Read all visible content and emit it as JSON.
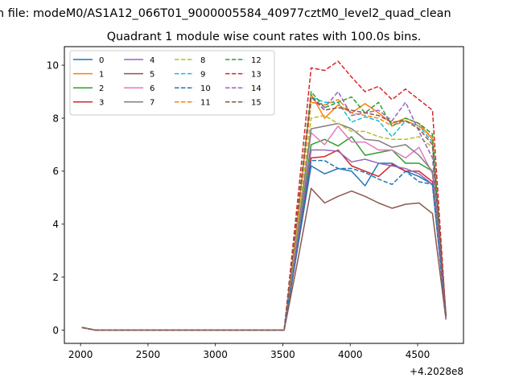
{
  "figure": {
    "suptitle": "n file: modeM0/AS1A12_066T01_9000005584_40977cztM0_level2_quad_clean",
    "title": "Quadrant 1 module wise count rates with 100.0s bins."
  },
  "chart_data": {
    "type": "line",
    "title": "Quadrant 1 module wise count rates with 100.0s bins.",
    "xlabel": "",
    "ylabel": "",
    "x_offset_label": "+4.2028e8",
    "xlim": [
      1880,
      4840
    ],
    "ylim": [
      -0.5,
      10.7
    ],
    "xticks": [
      2000,
      2500,
      3000,
      3500,
      4000,
      4500
    ],
    "yticks": [
      0,
      2,
      4,
      6,
      8,
      10
    ],
    "grid": false,
    "legend_position": "upper-left",
    "legend_columns": 4,
    "x": [
      2010,
      2110,
      2210,
      2310,
      2410,
      2510,
      2610,
      2710,
      2810,
      2910,
      3010,
      3110,
      3210,
      3310,
      3410,
      3510,
      3610,
      3710,
      3810,
      3910,
      4010,
      4110,
      4210,
      4310,
      4410,
      4510,
      4610,
      4710
    ],
    "series": [
      {
        "name": "0",
        "color": "#1f77b4",
        "dash": false,
        "values": [
          0.1,
          0,
          0,
          0,
          0,
          0,
          0,
          0,
          0,
          0,
          0,
          0,
          0,
          0,
          0,
          0,
          3.1,
          6.2,
          5.9,
          6.1,
          6.0,
          5.45,
          6.3,
          6.3,
          6.0,
          5.8,
          5.5,
          0.5
        ]
      },
      {
        "name": "1",
        "color": "#ff7f0e",
        "dash": false,
        "values": [
          0.1,
          0,
          0,
          0,
          0,
          0,
          0,
          0,
          0,
          0,
          0,
          0,
          0,
          0,
          0,
          0,
          4.2,
          8.9,
          8.0,
          8.5,
          8.2,
          8.55,
          8.2,
          7.8,
          8.0,
          7.8,
          7.2,
          0.6
        ]
      },
      {
        "name": "2",
        "color": "#2ca02c",
        "dash": false,
        "values": [
          0.1,
          0,
          0,
          0,
          0,
          0,
          0,
          0,
          0,
          0,
          0,
          0,
          0,
          0,
          0,
          0,
          3.5,
          7.0,
          7.2,
          6.95,
          7.3,
          6.6,
          6.7,
          6.8,
          6.3,
          6.3,
          6.0,
          0.5
        ]
      },
      {
        "name": "3",
        "color": "#d62728",
        "dash": false,
        "values": [
          0.1,
          0,
          0,
          0,
          0,
          0,
          0,
          0,
          0,
          0,
          0,
          0,
          0,
          0,
          0,
          0,
          3.2,
          6.5,
          6.55,
          6.8,
          6.2,
          6.0,
          5.8,
          6.25,
          6.0,
          6.0,
          5.6,
          0.5
        ]
      },
      {
        "name": "4",
        "color": "#9467bd",
        "dash": false,
        "values": [
          0.1,
          0,
          0,
          0,
          0,
          0,
          0,
          0,
          0,
          0,
          0,
          0,
          0,
          0,
          0,
          0,
          3.3,
          6.8,
          6.8,
          6.75,
          6.35,
          6.45,
          6.3,
          6.2,
          6.1,
          5.9,
          5.5,
          0.5
        ]
      },
      {
        "name": "5",
        "color": "#8c564b",
        "dash": false,
        "values": [
          0.1,
          0,
          0,
          0,
          0,
          0,
          0,
          0,
          0,
          0,
          0,
          0,
          0,
          0,
          0,
          0,
          2.6,
          5.35,
          4.8,
          5.05,
          5.25,
          5.05,
          4.8,
          4.6,
          4.75,
          4.8,
          4.4,
          0.4
        ]
      },
      {
        "name": "6",
        "color": "#e377c2",
        "dash": false,
        "values": [
          0.1,
          0,
          0,
          0,
          0,
          0,
          0,
          0,
          0,
          0,
          0,
          0,
          0,
          0,
          0,
          0,
          3.7,
          7.45,
          7.0,
          7.7,
          7.1,
          7.1,
          6.8,
          6.8,
          6.5,
          6.9,
          5.9,
          0.5
        ]
      },
      {
        "name": "7",
        "color": "#7f7f7f",
        "dash": false,
        "values": [
          0.1,
          0,
          0,
          0,
          0,
          0,
          0,
          0,
          0,
          0,
          0,
          0,
          0,
          0,
          0,
          0,
          3.8,
          7.6,
          7.7,
          7.8,
          7.6,
          7.2,
          7.15,
          6.9,
          7.0,
          6.6,
          6.0,
          0.5
        ]
      },
      {
        "name": "8",
        "color": "#bcbd22",
        "dash": true,
        "values": [
          0.1,
          0,
          0,
          0,
          0,
          0,
          0,
          0,
          0,
          0,
          0,
          0,
          0,
          0,
          0,
          0,
          4.0,
          8.0,
          8.1,
          7.8,
          7.5,
          7.5,
          7.3,
          7.2,
          7.2,
          7.3,
          6.9,
          0.5
        ]
      },
      {
        "name": "9",
        "color": "#17becf",
        "dash": true,
        "values": [
          0.1,
          0,
          0,
          0,
          0,
          0,
          0,
          0,
          0,
          0,
          0,
          0,
          0,
          0,
          0,
          0,
          4.4,
          8.8,
          8.6,
          8.6,
          7.85,
          8.05,
          7.9,
          7.3,
          7.9,
          7.7,
          7.1,
          0.6
        ]
      },
      {
        "name": "10",
        "color": "#1f77b4",
        "dash": true,
        "values": [
          0.1,
          0,
          0,
          0,
          0,
          0,
          0,
          0,
          0,
          0,
          0,
          0,
          0,
          0,
          0,
          0,
          3.2,
          6.4,
          6.4,
          6.1,
          6.1,
          5.95,
          5.7,
          5.5,
          6.0,
          5.6,
          5.5,
          0.5
        ]
      },
      {
        "name": "11",
        "color": "#ff7f0e",
        "dash": true,
        "values": [
          0.1,
          0,
          0,
          0,
          0,
          0,
          0,
          0,
          0,
          0,
          0,
          0,
          0,
          0,
          0,
          0,
          4.3,
          8.6,
          8.5,
          8.7,
          8.2,
          8.1,
          8.0,
          7.7,
          7.9,
          7.7,
          7.3,
          0.5
        ]
      },
      {
        "name": "12",
        "color": "#2ca02c",
        "dash": true,
        "values": [
          0.1,
          0,
          0,
          0,
          0,
          0,
          0,
          0,
          0,
          0,
          0,
          0,
          0,
          0,
          0,
          0,
          4.5,
          9.0,
          8.4,
          8.6,
          8.8,
          8.2,
          8.6,
          7.7,
          8.0,
          7.8,
          7.4,
          0.5
        ]
      },
      {
        "name": "13",
        "color": "#d62728",
        "dash": true,
        "values": [
          0.1,
          0,
          0,
          0,
          0,
          0,
          0,
          0,
          0,
          0,
          0,
          0,
          0,
          0,
          0,
          0,
          4.9,
          9.9,
          9.8,
          10.15,
          9.55,
          9.0,
          9.2,
          8.7,
          9.1,
          8.7,
          8.3,
          0.5
        ]
      },
      {
        "name": "14",
        "color": "#9467bd",
        "dash": true,
        "values": [
          0.1,
          0,
          0,
          0,
          0,
          0,
          0,
          0,
          0,
          0,
          0,
          0,
          0,
          0,
          0,
          0,
          4.4,
          8.8,
          8.4,
          9.0,
          8.1,
          8.2,
          8.3,
          7.9,
          8.6,
          7.5,
          6.5,
          0.5
        ]
      },
      {
        "name": "15",
        "color": "#8c564b",
        "dash": true,
        "values": [
          0.1,
          0,
          0,
          0,
          0,
          0,
          0,
          0,
          0,
          0,
          0,
          0,
          0,
          0,
          0,
          0,
          4.4,
          8.8,
          8.3,
          8.4,
          8.3,
          8.2,
          8.1,
          7.85,
          7.9,
          7.6,
          7.0,
          0.5
        ]
      }
    ]
  }
}
